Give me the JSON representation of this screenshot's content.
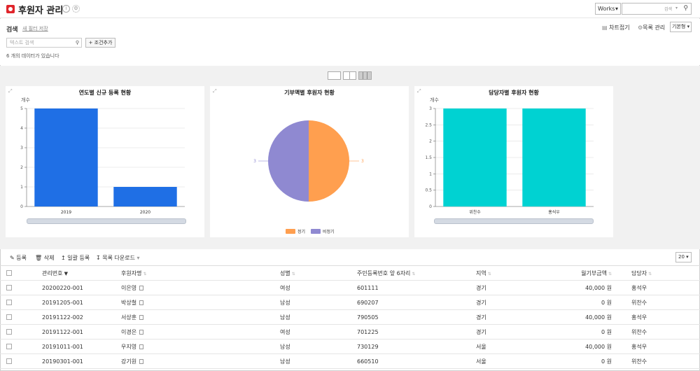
{
  "header": {
    "title": "후원자 관리",
    "scope_value": "Works",
    "search_label": "검색"
  },
  "search": {
    "label": "검색",
    "save_filter": "새 필터 저장",
    "chart_fold": "차트접기",
    "list_manage": "목록 관리",
    "view_type": "기본형",
    "text_placeholder": "텍스트 검색",
    "add_condition": "조건추가",
    "result_count": "6 개의 데이터가 있습니다"
  },
  "charts": [
    {
      "title": "연도별 신규 등록 현황",
      "y_label": "개수",
      "chart_data": {
        "type": "bar",
        "categories": [
          "2019",
          "2020"
        ],
        "values": [
          5,
          1
        ],
        "ylim": [
          0,
          5
        ],
        "yticks": [
          "0",
          "1",
          "2",
          "3",
          "4",
          "5"
        ],
        "color": "#1f6fe5"
      }
    },
    {
      "title": "기부액별 후원자 현황",
      "chart_data": {
        "type": "pie",
        "labels": [
          "정기",
          "비정기"
        ],
        "values": [
          3,
          3
        ],
        "value_labels": [
          "3",
          "3"
        ],
        "colors": [
          "#ff9f4f",
          "#8f89d1"
        ],
        "legend": "bottom"
      }
    },
    {
      "title": "담당자별 후원자 현황",
      "y_label": "개수",
      "chart_data": {
        "type": "bar",
        "categories": [
          "위찬수",
          "홍석우"
        ],
        "values": [
          3,
          3
        ],
        "ylim": [
          0,
          3
        ],
        "yticks": [
          "0",
          "0.5",
          "1",
          "1.5",
          "2",
          "2.5",
          "3"
        ],
        "color": "#00d2d2"
      }
    }
  ],
  "toolbar": {
    "register": "등록",
    "delete": "삭제",
    "bulk_register": "일괄 등록",
    "list_download": "목록 다운로드",
    "page_size": "20"
  },
  "table": {
    "columns": [
      "관리번호",
      "후원자명",
      "성별",
      "주민등록번호 앞 6자리",
      "지역",
      "월기부금액",
      "담당자"
    ],
    "rows": [
      [
        "20200220-001",
        "이은영",
        "여성",
        "601111",
        "경기",
        "40,000 원",
        "홍석우"
      ],
      [
        "20191205-001",
        "박상철",
        "남성",
        "690207",
        "경기",
        "0 원",
        "위찬수"
      ],
      [
        "20191122-002",
        "서상훈",
        "남성",
        "790505",
        "경기",
        "40,000 원",
        "홍석우"
      ],
      [
        "20191122-001",
        "이경은",
        "여성",
        "701225",
        "경기",
        "0 원",
        "위찬수"
      ],
      [
        "20191011-001",
        "우지영",
        "남성",
        "730129",
        "서울",
        "40,000 원",
        "홍석우"
      ],
      [
        "20190301-001",
        "강기원",
        "남성",
        "660510",
        "서울",
        "0 원",
        "위찬수"
      ]
    ]
  }
}
